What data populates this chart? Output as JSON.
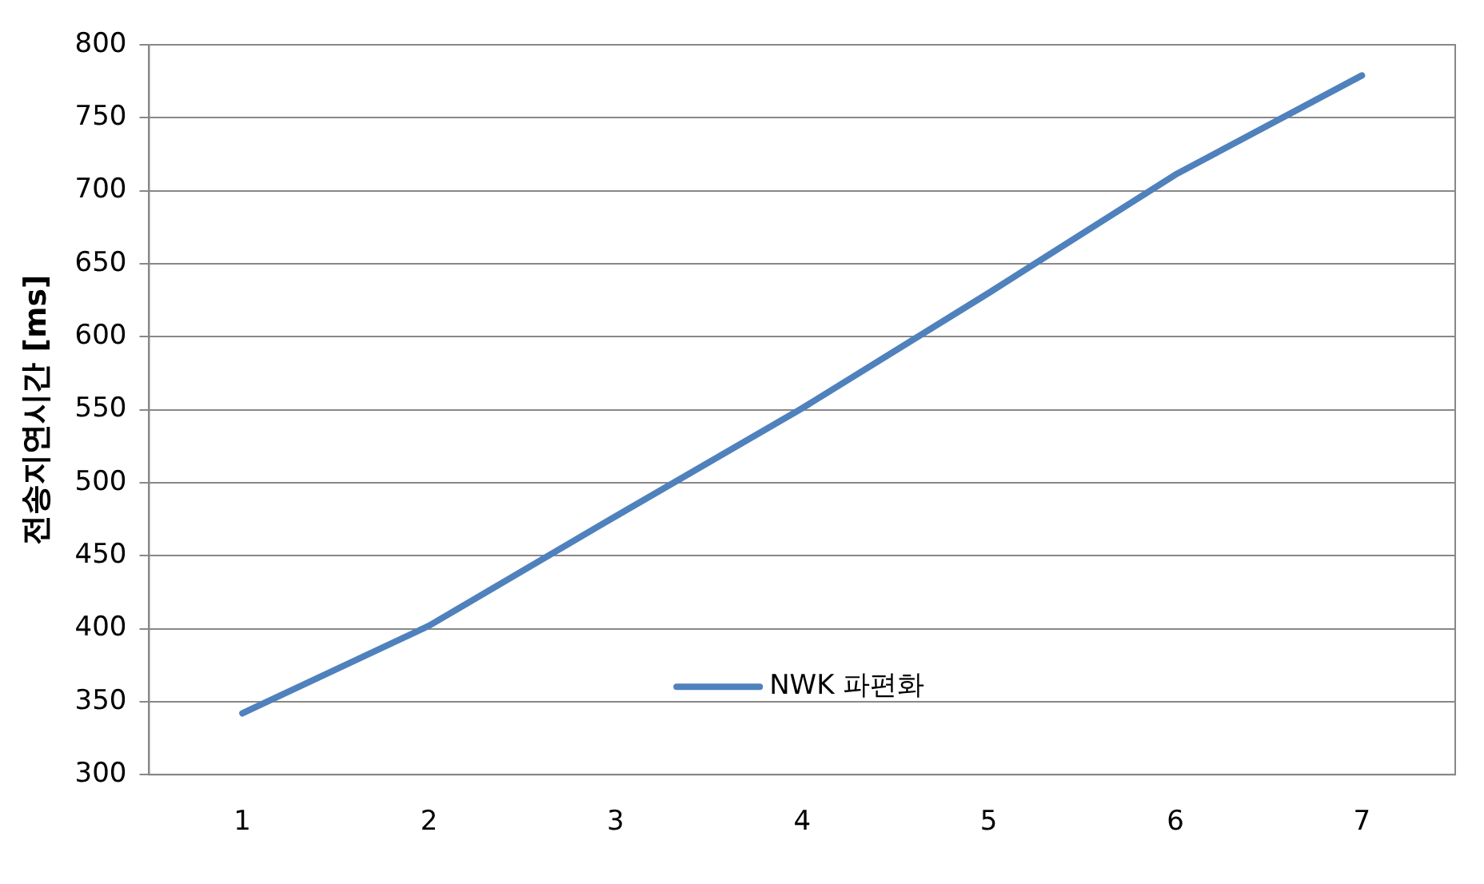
{
  "chart_data": {
    "type": "line",
    "ylabel": "전송지연시간 [ms]",
    "categories": [
      "1",
      "2",
      "3",
      "4",
      "5",
      "6",
      "7"
    ],
    "series": [
      {
        "name": "NWK 파편화",
        "color": "#4f81bd",
        "values": [
          342,
          402,
          477,
          551,
          630,
          711,
          779
        ]
      }
    ],
    "ylim": [
      300,
      800
    ],
    "yticks": [
      300,
      350,
      400,
      450,
      500,
      550,
      600,
      650,
      700,
      750,
      800
    ],
    "grid": "y",
    "legend": "bottom",
    "marker": "none"
  }
}
